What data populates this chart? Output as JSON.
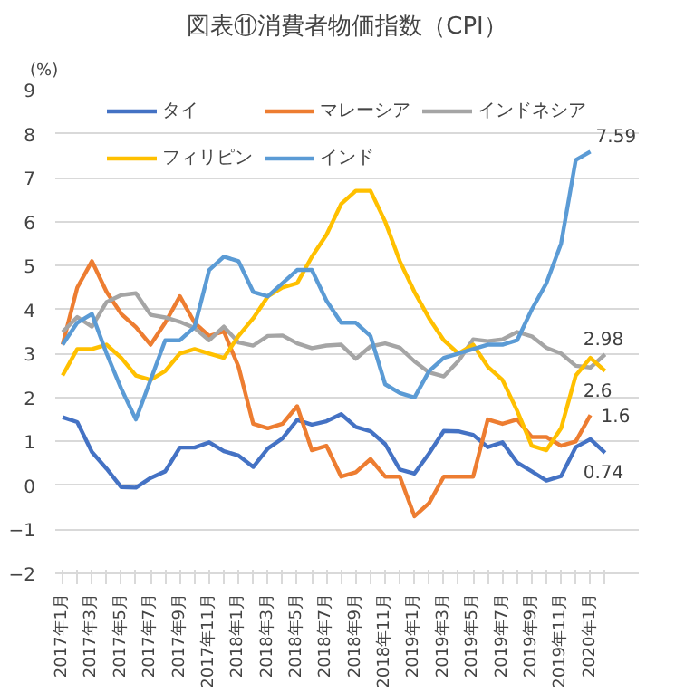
{
  "chart_data": {
    "type": "line",
    "title": "図表⑪消費者物価指数（CPI）",
    "ylabel": "(%)",
    "x": [
      "2017-01",
      "2017-02",
      "2017-03",
      "2017-04",
      "2017-05",
      "2017-06",
      "2017-07",
      "2017-08",
      "2017-09",
      "2017-10",
      "2017-11",
      "2017-12",
      "2018-01",
      "2018-02",
      "2018-03",
      "2018-04",
      "2018-05",
      "2018-06",
      "2018-07",
      "2018-08",
      "2018-09",
      "2018-10",
      "2018-11",
      "2018-12",
      "2019-01",
      "2019-02",
      "2019-03",
      "2019-04",
      "2019-05",
      "2019-06",
      "2019-07",
      "2019-08",
      "2019-09",
      "2019-10",
      "2019-11",
      "2019-12",
      "2020-01",
      "2020-02"
    ],
    "xlim": [
      "2016-12-16",
      "2020-04-10"
    ],
    "xticks": [
      {
        "value": "2017-01",
        "label": "2017年1月"
      },
      {
        "value": "2017-02",
        "label": null
      },
      {
        "value": "2017-03",
        "label": "2017年3月"
      },
      {
        "value": "2017-04",
        "label": null
      },
      {
        "value": "2017-05",
        "label": "2017年5月"
      },
      {
        "value": "2017-06",
        "label": null
      },
      {
        "value": "2017-07",
        "label": "2017年7月"
      },
      {
        "value": "2017-08",
        "label": null
      },
      {
        "value": "2017-09",
        "label": "2017年9月"
      },
      {
        "value": "2017-10",
        "label": null
      },
      {
        "value": "2017-11",
        "label": "2017年11月"
      },
      {
        "value": "2017-12",
        "label": null
      },
      {
        "value": "2018-01",
        "label": "2018年1月"
      },
      {
        "value": "2018-02",
        "label": null
      },
      {
        "value": "2018-03",
        "label": "2018年3月"
      },
      {
        "value": "2018-04",
        "label": null
      },
      {
        "value": "2018-05",
        "label": "2018年5月"
      },
      {
        "value": "2018-06",
        "label": null
      },
      {
        "value": "2018-07",
        "label": "2018年7月"
      },
      {
        "value": "2018-08",
        "label": null
      },
      {
        "value": "2018-09",
        "label": "2018年9月"
      },
      {
        "value": "2018-10",
        "label": null
      },
      {
        "value": "2018-11",
        "label": "2018年11月"
      },
      {
        "value": "2018-12",
        "label": null
      },
      {
        "value": "2019-01",
        "label": "2019年1月"
      },
      {
        "value": "2019-02",
        "label": null
      },
      {
        "value": "2019-03",
        "label": "2019年3月"
      },
      {
        "value": "2019-04",
        "label": null
      },
      {
        "value": "2019-05",
        "label": "2019年5月"
      },
      {
        "value": "2019-06",
        "label": null
      },
      {
        "value": "2019-07",
        "label": "2019年7月"
      },
      {
        "value": "2019-08",
        "label": null
      },
      {
        "value": "2019-09",
        "label": "2019年9月"
      },
      {
        "value": "2019-10",
        "label": null
      },
      {
        "value": "2019-11",
        "label": "2019年11月"
      },
      {
        "value": "2019-12",
        "label": null
      },
      {
        "value": "2020-01",
        "label": "2020年1月"
      },
      {
        "value": "2020-02",
        "label": null
      }
    ],
    "ylim": [
      -2,
      9
    ],
    "yticks": [
      -2,
      -1,
      0,
      1,
      2,
      3,
      4,
      5,
      6,
      7,
      8,
      9
    ],
    "grid": "y",
    "legend": "top",
    "line_style": "solid",
    "marker": "none",
    "series": [
      {
        "name": "タイ",
        "color": "#4472c4",
        "values": [
          1.55,
          1.44,
          0.76,
          0.38,
          -0.04,
          -0.05,
          0.17,
          0.32,
          0.86,
          0.86,
          0.98,
          0.78,
          0.68,
          0.42,
          0.84,
          1.07,
          1.49,
          1.38,
          1.46,
          1.62,
          1.33,
          1.23,
          0.94,
          0.36,
          0.27,
          0.73,
          1.24,
          1.23,
          1.15,
          0.87,
          0.98,
          0.52,
          0.32,
          0.11,
          0.21,
          0.87,
          1.05,
          0.74
        ]
      },
      {
        "name": "マレーシア",
        "color": "#ed7d31",
        "values": [
          3.2,
          4.5,
          5.1,
          4.4,
          3.9,
          3.6,
          3.2,
          3.7,
          4.3,
          3.7,
          3.4,
          3.5,
          2.7,
          1.4,
          1.3,
          1.4,
          1.8,
          0.8,
          0.9,
          0.2,
          0.3,
          0.6,
          0.2,
          0.2,
          -0.7,
          -0.4,
          0.2,
          0.2,
          0.2,
          1.5,
          1.4,
          1.5,
          1.1,
          1.1,
          0.9,
          1.0,
          1.6,
          null
        ]
      },
      {
        "name": "インドネシア",
        "color": "#a5a5a5",
        "values": [
          3.49,
          3.83,
          3.61,
          4.17,
          4.33,
          4.37,
          3.88,
          3.82,
          3.72,
          3.58,
          3.3,
          3.61,
          3.25,
          3.18,
          3.4,
          3.41,
          3.23,
          3.12,
          3.18,
          3.2,
          2.88,
          3.16,
          3.23,
          3.13,
          2.82,
          2.57,
          2.48,
          2.83,
          3.32,
          3.28,
          3.32,
          3.49,
          3.39,
          3.13,
          3.0,
          2.72,
          2.68,
          2.98
        ]
      },
      {
        "name": "フィリピン",
        "color": "#ffc000",
        "values": [
          2.5,
          3.1,
          3.1,
          3.2,
          2.9,
          2.5,
          2.4,
          2.6,
          3.0,
          3.1,
          3.0,
          2.9,
          3.4,
          3.8,
          4.3,
          4.5,
          4.6,
          5.2,
          5.7,
          6.4,
          6.7,
          6.7,
          6.0,
          5.1,
          4.4,
          3.8,
          3.3,
          3.0,
          3.2,
          2.7,
          2.4,
          1.7,
          0.9,
          0.8,
          1.3,
          2.5,
          2.9,
          2.6
        ]
      },
      {
        "name": "インド",
        "color": "#5b9bd5",
        "values": [
          3.2,
          3.7,
          3.9,
          3.0,
          2.2,
          1.5,
          2.4,
          3.3,
          3.3,
          3.6,
          4.9,
          5.2,
          5.1,
          4.4,
          4.3,
          4.6,
          4.9,
          4.9,
          4.2,
          3.7,
          3.7,
          3.4,
          2.3,
          2.1,
          2.0,
          2.6,
          2.9,
          3.0,
          3.1,
          3.2,
          3.2,
          3.3,
          4.0,
          4.6,
          5.5,
          7.4,
          7.59,
          null
        ]
      }
    ],
    "annotations": [
      {
        "text": "7.59",
        "x": "2020-01",
        "y": 7.59
      },
      {
        "text": "2.98",
        "x": "2020-02",
        "y": 2.98
      },
      {
        "text": "2.6",
        "x": "2020-02",
        "y": 2.6
      },
      {
        "text": "1.6",
        "x": "2020-01",
        "y": 1.6
      },
      {
        "text": "0.74",
        "x": "2020-02",
        "y": 0.74
      }
    ]
  }
}
